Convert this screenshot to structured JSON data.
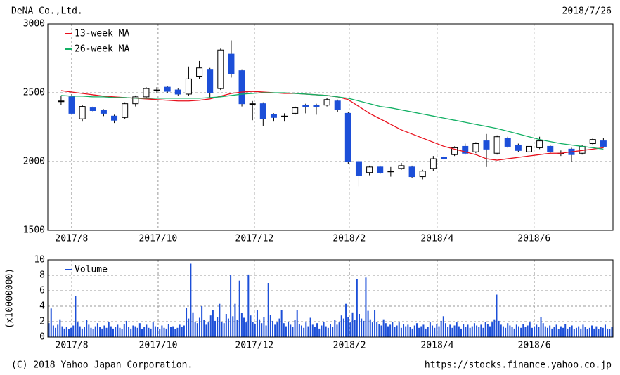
{
  "header": {
    "company": "DeNA Co.,Ltd.",
    "date": "2018/7/26"
  },
  "chart_data": [
    {
      "type": "candlestick",
      "up_color": "#ffffff",
      "down_color": "#1c4fd8",
      "grid": true,
      "legend": "top-left",
      "xlim": [
        -1.25,
        51.9
      ],
      "xticks": [
        {
          "value": 0.99,
          "label": "2017/8"
        },
        {
          "value": 9.12,
          "label": "2017/10"
        },
        {
          "value": 18.18,
          "label": "2017/12"
        },
        {
          "value": 27.1,
          "label": "2018/2"
        },
        {
          "value": 35.36,
          "label": "2018/4"
        },
        {
          "value": 44.48,
          "label": "2018/6"
        }
      ],
      "ylim": [
        1500,
        3000
      ],
      "yticks": [
        1500,
        2000,
        2500,
        3000
      ],
      "open": [
        2440,
        2470,
        2310,
        2390,
        2370,
        2330,
        2320,
        2420,
        2470,
        2520,
        2540,
        2520,
        2490,
        2620,
        2670,
        2530,
        2780,
        2660,
        2420,
        2420,
        2340,
        2330,
        2350,
        2410,
        2410,
        2410,
        2440,
        2350,
        2000,
        1920,
        1960,
        1930,
        1950,
        1960,
        1890,
        1950,
        2030,
        2050,
        2110,
        2070,
        2150,
        2060,
        2170,
        2120,
        2070,
        2100,
        2110,
        2060,
        2090,
        2060,
        2130,
        2150
      ],
      "high": [
        2480,
        2490,
        2410,
        2400,
        2380,
        2340,
        2430,
        2480,
        2540,
        2540,
        2550,
        2530,
        2690,
        2730,
        2680,
        2820,
        2880,
        2670,
        2440,
        2430,
        2350,
        2350,
        2400,
        2420,
        2420,
        2460,
        2450,
        2360,
        2010,
        1970,
        1970,
        1960,
        1990,
        1970,
        1940,
        2040,
        2050,
        2110,
        2130,
        2140,
        2200,
        2190,
        2180,
        2130,
        2120,
        2180,
        2120,
        2080,
        2100,
        2120,
        2170,
        2170
      ],
      "low": [
        2410,
        2340,
        2290,
        2360,
        2330,
        2280,
        2310,
        2400,
        2460,
        2500,
        2500,
        2480,
        2480,
        2600,
        2460,
        2520,
        2610,
        2400,
        2300,
        2260,
        2290,
        2290,
        2340,
        2350,
        2340,
        2400,
        2360,
        1980,
        1820,
        1900,
        1910,
        1890,
        1940,
        1880,
        1870,
        1930,
        2010,
        2040,
        2050,
        2060,
        1960,
        2050,
        2100,
        2070,
        2060,
        2090,
        2060,
        2040,
        2000,
        2050,
        2120,
        2100
      ],
      "close": [
        2440,
        2350,
        2400,
        2370,
        2350,
        2300,
        2420,
        2470,
        2530,
        2520,
        2510,
        2490,
        2600,
        2680,
        2500,
        2810,
        2640,
        2420,
        2420,
        2310,
        2320,
        2330,
        2390,
        2400,
        2400,
        2450,
        2380,
        2000,
        1900,
        1960,
        1920,
        1930,
        1970,
        1890,
        1930,
        2020,
        2020,
        2100,
        2060,
        2130,
        2090,
        2180,
        2110,
        2080,
        2110,
        2150,
        2070,
        2060,
        2050,
        2110,
        2160,
        2110
      ],
      "series": [
        {
          "name": "13-week MA",
          "color": "#e8101c",
          "values": [
            2515,
            2505,
            2495,
            2485,
            2475,
            2470,
            2465,
            2460,
            2455,
            2450,
            2445,
            2440,
            2440,
            2445,
            2455,
            2475,
            2495,
            2505,
            2510,
            2505,
            2500,
            2495,
            2495,
            2490,
            2485,
            2480,
            2470,
            2450,
            2400,
            2350,
            2310,
            2270,
            2230,
            2200,
            2170,
            2140,
            2110,
            2090,
            2070,
            2050,
            2020,
            2010,
            2020,
            2030,
            2040,
            2050,
            2060,
            2060,
            2070,
            2080,
            2090,
            2100
          ]
        },
        {
          "name": "26-week MA",
          "color": "#12b064",
          "values": [
            2480,
            2475,
            2475,
            2470,
            2470,
            2465,
            2465,
            2460,
            2460,
            2460,
            2460,
            2460,
            2460,
            2460,
            2465,
            2470,
            2480,
            2490,
            2495,
            2500,
            2500,
            2500,
            2495,
            2490,
            2485,
            2480,
            2470,
            2460,
            2440,
            2420,
            2400,
            2390,
            2375,
            2360,
            2345,
            2330,
            2315,
            2300,
            2285,
            2270,
            2255,
            2240,
            2220,
            2200,
            2180,
            2160,
            2145,
            2130,
            2120,
            2110,
            2100,
            2090
          ]
        }
      ]
    },
    {
      "type": "bar",
      "ylabel": "(x10000000)",
      "grid": true,
      "legend": "top-left",
      "xlim": [
        -0.5,
        254.5
      ],
      "xticks": [
        {
          "value": 10.3,
          "label": "2017/8"
        },
        {
          "value": 49.3,
          "label": "2017/10"
        },
        {
          "value": 92.7,
          "label": "2017/12"
        },
        {
          "value": 135.6,
          "label": "2018/2"
        },
        {
          "value": 175.2,
          "label": "2018/4"
        },
        {
          "value": 219.0,
          "label": "2018/6"
        }
      ],
      "ylim": [
        0,
        10
      ],
      "yticks": [
        0,
        2,
        4,
        6,
        8,
        10
      ],
      "series": [
        {
          "name": "Volume",
          "color": "#1c4fd8",
          "values": [
            1.8,
            3.7,
            1.5,
            1.2,
            1.6,
            2.3,
            1.4,
            1.1,
            1.3,
            1.0,
            1.2,
            1.5,
            5.3,
            1.9,
            1.4,
            1.1,
            1.3,
            2.2,
            1.6,
            1.2,
            1.0,
            1.4,
            1.8,
            1.3,
            1.1,
            1.5,
            1.2,
            2.0,
            1.4,
            1.1,
            1.3,
            1.6,
            1.2,
            1.0,
            1.7,
            2.1,
            1.3,
            1.1,
            1.5,
            1.4,
            1.2,
            1.8,
            1.0,
            1.3,
            1.6,
            1.2,
            1.1,
            1.9,
            1.4,
            1.3,
            1.0,
            1.5,
            1.2,
            1.1,
            1.7,
            1.3,
            1.4,
            1.0,
            1.2,
            1.6,
            1.3,
            1.5,
            3.8,
            2.4,
            9.5,
            3.2,
            2.0,
            1.8,
            2.5,
            4.0,
            2.2,
            1.6,
            1.9,
            2.8,
            3.5,
            2.1,
            2.6,
            4.3,
            2.0,
            1.8,
            3.0,
            2.4,
            8.0,
            2.7,
            4.3,
            2.2,
            7.3,
            3.1,
            2.5,
            1.9,
            8.1,
            2.8,
            2.0,
            1.7,
            3.5,
            2.3,
            1.8,
            2.6,
            1.5,
            7.0,
            2.9,
            2.1,
            1.6,
            1.9,
            2.4,
            3.5,
            1.8,
            1.4,
            2.0,
            1.6,
            1.3,
            2.2,
            3.5,
            1.7,
            1.5,
            1.2,
            1.9,
            1.4,
            2.5,
            1.6,
            1.3,
            1.8,
            1.1,
            1.5,
            2.0,
            1.4,
            1.2,
            1.7,
            1.3,
            2.2,
            1.6,
            1.9,
            2.8,
            2.4,
            4.3,
            2.6,
            1.9,
            3.2,
            2.2,
            7.5,
            3.0,
            2.4,
            2.1,
            7.7,
            3.4,
            2.3,
            1.9,
            3.5,
            2.0,
            1.7,
            1.5,
            2.3,
            1.8,
            1.4,
            1.6,
            2.0,
            1.3,
            1.5,
            1.9,
            1.2,
            1.7,
            1.4,
            1.6,
            1.3,
            1.1,
            1.5,
            1.8,
            1.2,
            1.4,
            1.6,
            1.1,
            1.3,
            1.9,
            1.5,
            1.2,
            1.7,
            1.4,
            2.1,
            2.7,
            1.8,
            1.3,
            1.6,
            1.2,
            1.5,
            1.9,
            1.4,
            1.1,
            1.7,
            1.3,
            1.6,
            1.2,
            1.4,
            1.8,
            1.5,
            1.3,
            1.6,
            1.2,
            2.0,
            1.7,
            1.4,
            1.9,
            2.3,
            5.5,
            2.1,
            1.6,
            1.4,
            1.2,
            1.8,
            1.5,
            1.3,
            1.1,
            1.6,
            1.4,
            1.2,
            1.7,
            1.3,
            1.5,
            1.9,
            1.2,
            1.4,
            1.6,
            1.3,
            2.6,
            1.8,
            1.4,
            1.2,
            1.5,
            1.1,
            1.3,
            1.6,
            1.0,
            1.4,
            1.2,
            1.7,
            1.1,
            1.3,
            1.5,
            1.0,
            1.2,
            1.4,
            1.1,
            1.6,
            1.3,
            1.0,
            1.2,
            1.5,
            1.1,
            1.4,
            1.0,
            1.3,
            1.2,
            1.6,
            1.1,
            1.0,
            1.3
          ]
        }
      ]
    }
  ],
  "footer": {
    "copyright": "(C) 2018 Yahoo Japan Corporation.",
    "url": "https://stocks.finance.yahoo.co.jp"
  }
}
